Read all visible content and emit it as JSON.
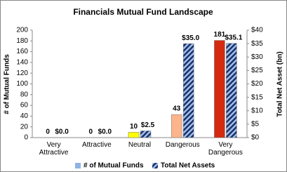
{
  "chart_data": {
    "type": "bar",
    "title": "Financials Mutual Fund Landscape",
    "categories": [
      "Very Attractive",
      "Attractive",
      "Neutral",
      "Dangerous",
      "Very Dangerous"
    ],
    "ylabel": "# of Mutual Funds",
    "y2label": "Total Net Asset (bn)",
    "ylim": [
      0,
      200
    ],
    "yticks": [
      0,
      20,
      40,
      60,
      80,
      100,
      120,
      140,
      160,
      180,
      200
    ],
    "y2lim": [
      0,
      40
    ],
    "y2ticks": [
      {
        "value": 0,
        "label": "$0"
      },
      {
        "value": 5,
        "label": "$5"
      },
      {
        "value": 10,
        "label": "$10"
      },
      {
        "value": 15,
        "label": "$15"
      },
      {
        "value": 20,
        "label": "$20"
      },
      {
        "value": 25,
        "label": "$25"
      },
      {
        "value": 30,
        "label": "$30"
      },
      {
        "value": 35,
        "label": "$35"
      },
      {
        "value": 40,
        "label": "$40"
      }
    ],
    "legend": "bottom",
    "series": [
      {
        "name": "# of Mutual Funds",
        "color": "#8db4e2",
        "colors": [
          "#8db4e2",
          "#8db4e2",
          "#ffff00",
          "#fbb48c",
          "#d42a10"
        ],
        "values": [
          0,
          0,
          10,
          43,
          181
        ]
      },
      {
        "name": "Total Net Assets",
        "color": "#1f2d6e",
        "axis": "y2",
        "values": [
          0,
          0,
          2.5,
          35.0,
          35.1
        ],
        "value_labels": [
          "$0.0",
          "$0.0",
          "$2.5",
          "$35.0",
          "$35.1"
        ]
      }
    ]
  }
}
